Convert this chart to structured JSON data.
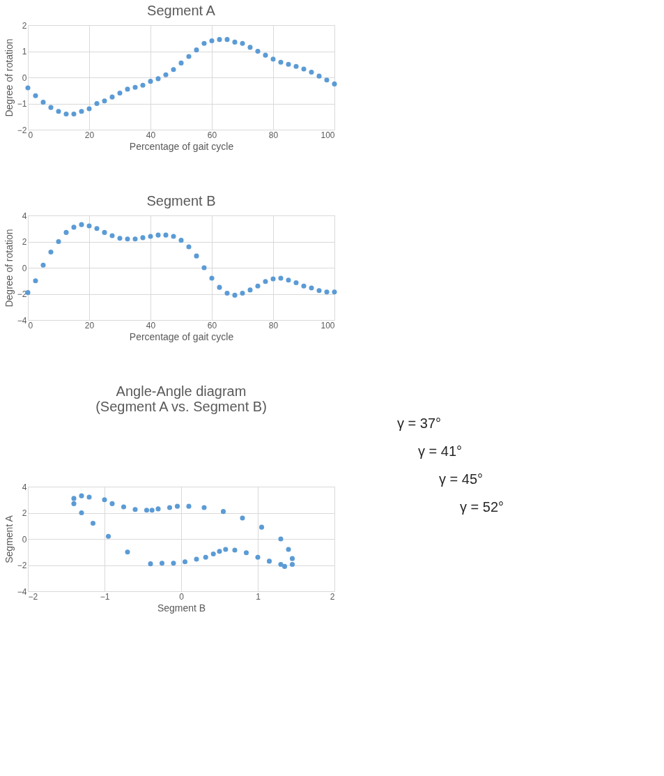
{
  "chart_data": [
    {
      "type": "scatter",
      "title": "Segment A",
      "xlabel": "Percentage of gait cycle",
      "ylabel": "Degree of rotation",
      "marker": "circle",
      "grid": true,
      "x": [
        0,
        2.5,
        5,
        7.5,
        10,
        12.5,
        15,
        17.5,
        20,
        22.5,
        25,
        27.5,
        30,
        32.5,
        35,
        37.5,
        40,
        42.5,
        45,
        47.5,
        50,
        52.5,
        55,
        57.5,
        60,
        62.5,
        65,
        67.5,
        70,
        72.5,
        75,
        77.5,
        80,
        82.5,
        85,
        87.5,
        90,
        92.5,
        95,
        97.5,
        100
      ],
      "series": [
        {
          "color": "#5b9bd5",
          "values": [
            -0.4,
            -0.7,
            -0.95,
            -1.15,
            -1.3,
            -1.4,
            -1.4,
            -1.3,
            -1.2,
            -1.0,
            -0.9,
            -0.75,
            -0.6,
            -0.45,
            -0.38,
            -0.3,
            -0.15,
            -0.05,
            0.1,
            0.3,
            0.55,
            0.8,
            1.05,
            1.3,
            1.4,
            1.45,
            1.45,
            1.35,
            1.3,
            1.15,
            1.0,
            0.85,
            0.7,
            0.58,
            0.5,
            0.42,
            0.32,
            0.2,
            0.05,
            -0.1,
            -0.25
          ]
        }
      ],
      "xlim": [
        0,
        100
      ],
      "xticks": [
        0,
        20,
        40,
        60,
        80,
        100
      ],
      "ylim": [
        -2,
        2
      ],
      "yticks": [
        -2,
        -1,
        0,
        1,
        2
      ]
    },
    {
      "type": "scatter",
      "title": "Segment B",
      "xlabel": "Percentage of gait cycle",
      "ylabel": "Degree of rotation",
      "marker": "circle",
      "grid": true,
      "x": [
        0,
        2.5,
        5,
        7.5,
        10,
        12.5,
        15,
        17.5,
        20,
        22.5,
        25,
        27.5,
        30,
        32.5,
        35,
        37.5,
        40,
        42.5,
        45,
        47.5,
        50,
        52.5,
        55,
        57.5,
        60,
        62.5,
        65,
        67.5,
        70,
        72.5,
        75,
        77.5,
        80,
        82.5,
        85,
        87.5,
        90,
        92.5,
        95,
        97.5,
        100
      ],
      "series": [
        {
          "color": "#5b9bd5",
          "values": [
            -1.9,
            -1.0,
            0.2,
            1.2,
            2.0,
            2.7,
            3.1,
            3.3,
            3.2,
            3.0,
            2.7,
            2.45,
            2.25,
            2.2,
            2.2,
            2.3,
            2.4,
            2.5,
            2.5,
            2.4,
            2.1,
            1.6,
            0.9,
            0.0,
            -0.8,
            -1.5,
            -1.95,
            -2.1,
            -1.95,
            -1.7,
            -1.4,
            -1.05,
            -0.85,
            -0.8,
            -0.95,
            -1.15,
            -1.4,
            -1.55,
            -1.75,
            -1.85,
            -1.85
          ]
        }
      ],
      "xlim": [
        0,
        100
      ],
      "xticks": [
        0,
        20,
        40,
        60,
        80,
        100
      ],
      "ylim": [
        -4,
        4
      ],
      "yticks": [
        -4,
        -2,
        0,
        2,
        4
      ]
    },
    {
      "type": "scatter",
      "title": "Angle-Angle diagram\n(Segment A vs. Segment B)",
      "xlabel": "Segment B",
      "ylabel": "Segment A",
      "marker": "circle",
      "grid": true,
      "x": [
        -0.4,
        -0.7,
        -0.95,
        -1.15,
        -1.3,
        -1.4,
        -1.4,
        -1.3,
        -1.2,
        -1.0,
        -0.9,
        -0.75,
        -0.6,
        -0.45,
        -0.38,
        -0.3,
        -0.15,
        -0.05,
        0.1,
        0.3,
        0.55,
        0.8,
        1.05,
        1.3,
        1.4,
        1.45,
        1.45,
        1.35,
        1.3,
        1.15,
        1.0,
        0.85,
        0.7,
        0.58,
        0.5,
        0.42,
        0.32,
        0.2,
        0.05,
        -0.1,
        -0.25
      ],
      "series": [
        {
          "color": "#5b9bd5",
          "values": [
            -1.9,
            -1.0,
            0.2,
            1.2,
            2.0,
            2.7,
            3.1,
            3.3,
            3.2,
            3.0,
            2.7,
            2.45,
            2.25,
            2.2,
            2.2,
            2.3,
            2.4,
            2.5,
            2.5,
            2.4,
            2.1,
            1.6,
            0.9,
            0.0,
            -0.8,
            -1.5,
            -1.95,
            -2.1,
            -1.95,
            -1.7,
            -1.4,
            -1.05,
            -0.85,
            -0.8,
            -0.95,
            -1.15,
            -1.4,
            -1.55,
            -1.75,
            -1.85,
            -1.85
          ]
        }
      ],
      "xlim": [
        -2,
        2
      ],
      "xticks": [
        -2,
        -1,
        0,
        1,
        2
      ],
      "ylim": [
        -4,
        4
      ],
      "yticks": [
        -4,
        -2,
        0,
        2,
        4
      ],
      "annotations": [
        "γ = 37°",
        "γ = 41°",
        "γ = 45°",
        "γ = 52°"
      ]
    }
  ]
}
